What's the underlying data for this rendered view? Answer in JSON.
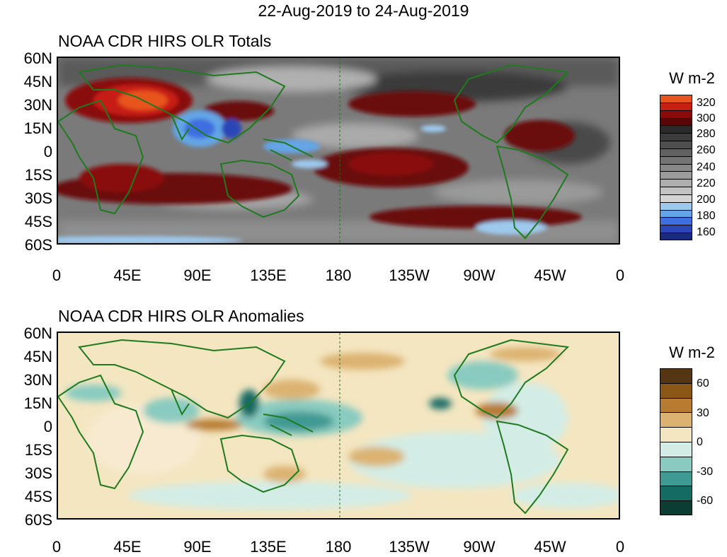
{
  "title": "22-Aug-2019 to 24-Aug-2019",
  "panels": [
    {
      "title": "NOAA CDR HIRS OLR Totals",
      "unit": "W m-2",
      "colorbar": {
        "labels": [
          "320",
          "300",
          "280",
          "260",
          "240",
          "220",
          "200",
          "180",
          "160"
        ],
        "colors": [
          "#e8541e",
          "#c71f12",
          "#8a0a0a",
          "#5a0508",
          "#2a2a2a",
          "#3c3c3c",
          "#4e4e4e",
          "#616161",
          "#747474",
          "#888888",
          "#9b9b9b",
          "#aeaeae",
          "#c2c2c2",
          "#d4d4d4",
          "#9ec9ee",
          "#63a5e6",
          "#3f6ee0",
          "#2a46b8",
          "#1a2a7c"
        ]
      }
    },
    {
      "title": "NOAA CDR HIRS OLR Anomalies",
      "unit": "W m-2",
      "colorbar": {
        "labels": [
          "60",
          "30",
          "0",
          "-30",
          "-60"
        ],
        "colors": [
          "#553612",
          "#8a5716",
          "#b77b32",
          "#dcb271",
          "#f4e6c1",
          "#d3ede6",
          "#89cbc0",
          "#3f9a93",
          "#136b63",
          "#0b3d34"
        ]
      }
    }
  ],
  "lat_labels": [
    "60N",
    "45N",
    "30N",
    "15N",
    "0",
    "15S",
    "30S",
    "45S",
    "60S"
  ],
  "lon_labels": [
    "0",
    "45E",
    "90E",
    "135E",
    "180",
    "135W",
    "90W",
    "45W",
    "0"
  ]
}
